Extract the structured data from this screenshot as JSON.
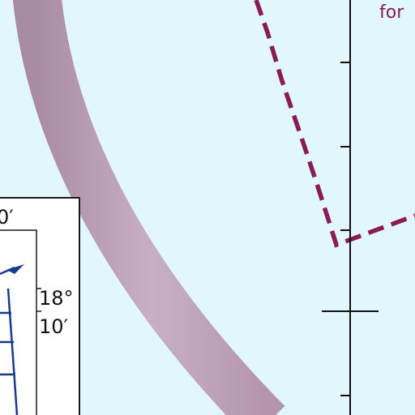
{
  "map": {
    "background_color": "#e2f7fb",
    "label_text": "for",
    "label_color": "#8a1c55",
    "route_color": "#8a1c55",
    "arc_color": "#bba0b4",
    "scale_color": "#111111"
  },
  "inset": {
    "top_label": "0′",
    "lat_deg": "18°",
    "lat_min": "10′",
    "line_color": "#1a3a8c"
  }
}
